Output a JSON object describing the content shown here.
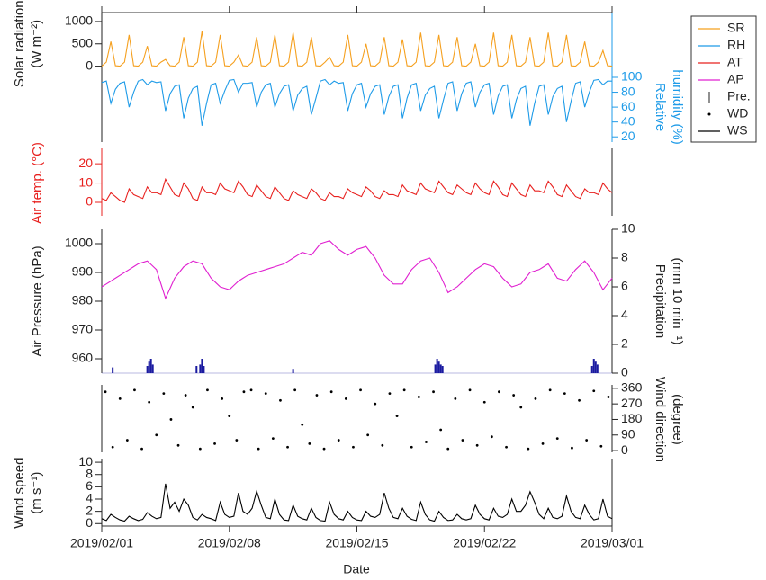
{
  "chart_data": {
    "type": "line",
    "xlabel": "Date",
    "xlim": [
      0,
      28
    ],
    "xticks": [
      {
        "value": 0,
        "label": "2019/02/01"
      },
      {
        "value": 7,
        "label": "2019/02/08"
      },
      {
        "value": 14,
        "label": "2019/02/15"
      },
      {
        "value": 21,
        "label": "2019/02/22"
      },
      {
        "value": 28,
        "label": "2019/03/01"
      }
    ],
    "x": [
      0,
      0.25,
      0.5,
      0.75,
      1,
      1.25,
      1.5,
      1.75,
      2,
      2.25,
      2.5,
      2.75,
      3,
      3.25,
      3.5,
      3.75,
      4,
      4.25,
      4.5,
      4.75,
      5,
      5.25,
      5.5,
      5.75,
      6,
      6.25,
      6.5,
      6.75,
      7,
      7.25,
      7.5,
      7.75,
      8,
      8.25,
      8.5,
      8.75,
      9,
      9.25,
      9.5,
      9.75,
      10,
      10.25,
      10.5,
      10.75,
      11,
      11.25,
      11.5,
      11.75,
      12,
      12.25,
      12.5,
      12.75,
      13,
      13.25,
      13.5,
      13.75,
      14,
      14.25,
      14.5,
      14.75,
      15,
      15.25,
      15.5,
      15.75,
      16,
      16.25,
      16.5,
      16.75,
      17,
      17.25,
      17.5,
      17.75,
      18,
      18.25,
      18.5,
      18.75,
      19,
      19.25,
      19.5,
      19.75,
      20,
      20.25,
      20.5,
      20.75,
      21,
      21.25,
      21.5,
      21.75,
      22,
      22.25,
      22.5,
      22.75,
      23,
      23.25,
      23.5,
      23.75,
      24,
      24.25,
      24.5,
      24.75,
      25,
      25.25,
      25.5,
      25.75,
      26,
      26.25,
      26.5,
      26.75,
      27,
      27.25,
      27.5,
      27.75,
      28
    ],
    "panels": [
      {
        "ylabel": [
          "Solar radiation",
          "(W m⁻²)"
        ],
        "ylim": [
          -1700,
          1200
        ],
        "yticks": [
          0,
          500,
          1000
        ],
        "y2label": [
          "Relative",
          "humidity (%)"
        ],
        "y2lim": [
          13,
          187
        ],
        "y2ticks": [
          20,
          40,
          60,
          80,
          100
        ],
        "series": [
          {
            "name": "SR",
            "type": "line",
            "color": "#f5a01f",
            "values": [
              0,
              90,
              550,
              10,
              0,
              90,
              700,
              10,
              0,
              90,
              450,
              10,
              0,
              90,
              150,
              10,
              0,
              90,
              650,
              10,
              0,
              90,
              780,
              10,
              0,
              90,
              700,
              10,
              0,
              90,
              250,
              10,
              0,
              90,
              650,
              10,
              0,
              90,
              700,
              10,
              0,
              90,
              750,
              10,
              0,
              90,
              650,
              10,
              0,
              90,
              200,
              10,
              0,
              90,
              700,
              10,
              0,
              90,
              500,
              10,
              0,
              90,
              650,
              10,
              0,
              90,
              600,
              10,
              0,
              90,
              750,
              10,
              0,
              90,
              700,
              10,
              0,
              90,
              650,
              10,
              0,
              90,
              500,
              10,
              0,
              90,
              750,
              10,
              0,
              90,
              700,
              10,
              0,
              90,
              650,
              10,
              0,
              90,
              750,
              10,
              0,
              90,
              700,
              10,
              0,
              90,
              550,
              10,
              0,
              90,
              350,
              10,
              0
            ]
          },
          {
            "name": "RH",
            "type": "line",
            "axis": "y2",
            "axis_colored": true,
            "color": "#1e9be8",
            "values": [
              93,
              95,
              65,
              84,
              92,
              94,
              60,
              80,
              95,
              97,
              90,
              95,
              93,
              94,
              55,
              78,
              88,
              90,
              45,
              72,
              85,
              88,
              35,
              65,
              90,
              92,
              65,
              82,
              96,
              97,
              80,
              92,
              92,
              93,
              60,
              80,
              90,
              92,
              60,
              78,
              88,
              90,
              55,
              76,
              85,
              88,
              50,
              72,
              95,
              97,
              90,
              95,
              92,
              93,
              55,
              78,
              90,
              92,
              60,
              78,
              88,
              90,
              50,
              74,
              88,
              90,
              45,
              72,
              90,
              92,
              55,
              76,
              85,
              88,
              45,
              70,
              92,
              94,
              55,
              78,
              92,
              94,
              60,
              80,
              90,
              92,
              50,
              75,
              88,
              90,
              45,
              70,
              85,
              88,
              35,
              65,
              88,
              90,
              50,
              74,
              85,
              88,
              40,
              68,
              92,
              94,
              60,
              80,
              96,
              97,
              90,
              95,
              95
            ]
          }
        ]
      },
      {
        "ylabel": [
          "Air temp. (°C)"
        ],
        "ylim": [
          -7,
          28
        ],
        "yticks": [
          0,
          10,
          20
        ],
        "series": [
          {
            "name": "AT",
            "type": "line",
            "axis_colored": true,
            "color": "#e8211f",
            "values": [
              2,
              1,
              5,
              3,
              1,
              0,
              7,
              4,
              3,
              2,
              8,
              5,
              5,
              4,
              12,
              8,
              4,
              3,
              10,
              7,
              2,
              1,
              8,
              5,
              5,
              4,
              10,
              7,
              6,
              5,
              11,
              8,
              4,
              3,
              9,
              6,
              3,
              2,
              8,
              5,
              2,
              1,
              6,
              4,
              3,
              2,
              7,
              5,
              2,
              1,
              5,
              3,
              3,
              2,
              7,
              5,
              4,
              3,
              8,
              6,
              3,
              2,
              6,
              4,
              4,
              3,
              9,
              6,
              5,
              4,
              10,
              7,
              6,
              5,
              11,
              8,
              5,
              4,
              9,
              7,
              5,
              4,
              10,
              7,
              5,
              4,
              11,
              8,
              4,
              3,
              10,
              7,
              4,
              3,
              9,
              6,
              6,
              5,
              11,
              8,
              4,
              3,
              9,
              6,
              3,
              2,
              7,
              5,
              5,
              4,
              10,
              7,
              5
            ]
          }
        ]
      },
      {
        "ylabel": [
          "Air Pressure (hPa)"
        ],
        "ylim": [
          955,
          1005
        ],
        "yticks": [
          960,
          970,
          980,
          990,
          1000
        ],
        "y2label": [
          "Precipitation",
          "(mm 10 min⁻¹)"
        ],
        "y2lim": [
          0,
          10
        ],
        "y2ticks": [
          0,
          2,
          4,
          6,
          8,
          10
        ],
        "series": [
          {
            "name": "AP",
            "type": "line",
            "color": "#e020d0",
            "values": [
              985,
              986,
              987,
              988,
              989,
              990,
              991,
              992,
              993,
              993.5,
              994,
              992.5,
              991,
              986,
              981,
              984.5,
              988,
              990,
              992,
              993,
              994,
              993.5,
              993,
              990.5,
              988,
              986.5,
              985,
              984.5,
              984,
              985.5,
              987,
              988,
              989,
              989.5,
              990,
              990.5,
              991,
              991.5,
              992,
              992.5,
              993,
              994,
              995,
              996,
              997,
              996.5,
              996,
              998,
              1000,
              1000.5,
              1001,
              999.5,
              998,
              997,
              996,
              997,
              998,
              998.5,
              999,
              997,
              995,
              992,
              989,
              987.5,
              986,
              986,
              986,
              988.5,
              991,
              992.5,
              994,
              994.5,
              995,
              992.5,
              990,
              986.5,
              983,
              984,
              985,
              986.5,
              988,
              989.5,
              991,
              992,
              993,
              992.5,
              992,
              990,
              988,
              986.5,
              985,
              985.5,
              986,
              988,
              990,
              990.5,
              991,
              992,
              993,
              990.5,
              988,
              987.5,
              987,
              989,
              991,
              992.5,
              994,
              992,
              990,
              987,
              984,
              986,
              988
            ]
          },
          {
            "name": "Pre.",
            "type": "bar",
            "axis": "y2",
            "color": "#1a1aa0",
            "x": [
              0.6,
              2.5,
              2.6,
              2.7,
              2.8,
              5.2,
              5.4,
              5.5,
              5.6,
              10.5,
              18.3,
              18.4,
              18.5,
              18.6,
              18.7,
              26.9,
              27.0,
              27.1,
              27.2
            ],
            "values": [
              0.4,
              0.5,
              0.8,
              1.0,
              0.6,
              0.5,
              0.6,
              1.0,
              0.5,
              0.3,
              0.6,
              1.0,
              0.8,
              0.6,
              0.5,
              0.5,
              1.0,
              0.8,
              0.6
            ]
          }
        ]
      },
      {
        "y2label": [
          "Wind direction",
          "(degree)"
        ],
        "y2lim": [
          -10,
          380
        ],
        "y2ticks": [
          0,
          90,
          180,
          270,
          360
        ],
        "series": [
          {
            "name": "WD",
            "type": "scatter",
            "axis": "y2",
            "color": "#000000",
            "x": [
              0.2,
              0.6,
              1.0,
              1.4,
              1.8,
              2.2,
              2.6,
              3.0,
              3.4,
              3.8,
              4.2,
              4.6,
              5.0,
              5.4,
              5.8,
              6.2,
              6.6,
              7.0,
              7.4,
              7.8,
              8.2,
              8.6,
              9.0,
              9.4,
              9.8,
              10.2,
              10.6,
              11.0,
              11.4,
              11.8,
              12.2,
              12.6,
              13.0,
              13.4,
              13.8,
              14.2,
              14.6,
              15.0,
              15.4,
              15.8,
              16.2,
              16.6,
              17.0,
              17.4,
              17.8,
              18.2,
              18.6,
              19.0,
              19.4,
              19.8,
              20.2,
              20.6,
              21.0,
              21.4,
              21.8,
              22.2,
              22.6,
              23.0,
              23.4,
              23.8,
              24.2,
              24.6,
              25.0,
              25.4,
              25.8,
              26.2,
              26.6,
              27.0,
              27.4,
              27.8
            ],
            "values": [
              340,
              20,
              300,
              60,
              350,
              10,
              280,
              90,
              330,
              180,
              30,
              320,
              250,
              10,
              350,
              40,
              300,
              200,
              60,
              340,
              350,
              10,
              330,
              70,
              290,
              20,
              350,
              150,
              40,
              320,
              10,
              340,
              60,
              300,
              20,
              350,
              90,
              270,
              30,
              330,
              200,
              350,
              20,
              310,
              50,
              340,
              120,
              10,
              300,
              60,
              350,
              30,
              280,
              80,
              340,
              20,
              320,
              250,
              10,
              300,
              40,
              350,
              70,
              330,
              15,
              290,
              60,
              345,
              25,
              310
            ]
          }
        ]
      },
      {
        "ylabel": [
          "Wind speed",
          "(m s⁻¹)"
        ],
        "ylim": [
          -0.4,
          10.6
        ],
        "yticks": [
          0,
          2,
          4,
          6,
          8,
          10
        ],
        "series": [
          {
            "name": "WS",
            "type": "line",
            "color": "#000000",
            "values": [
              0.8,
              0.5,
              1.5,
              1.0,
              0.6,
              0.4,
              1.2,
              0.8,
              0.5,
              0.7,
              1.8,
              1.2,
              0.8,
              1.0,
              6.5,
              2.5,
              3.5,
              2.0,
              4.0,
              3.0,
              1.0,
              0.6,
              1.5,
              1.0,
              0.8,
              0.5,
              3.5,
              1.5,
              1.0,
              1.2,
              5.0,
              2.0,
              1.5,
              2.5,
              5.3,
              3.0,
              1.0,
              0.8,
              4.0,
              1.5,
              0.6,
              0.5,
              3.0,
              1.2,
              0.8,
              0.6,
              2.5,
              1.0,
              0.5,
              0.4,
              3.5,
              1.5,
              0.8,
              0.6,
              2.0,
              1.0,
              0.6,
              0.5,
              2.0,
              1.2,
              1.0,
              1.5,
              5.0,
              2.5,
              1.0,
              0.8,
              2.5,
              1.2,
              0.7,
              0.5,
              3.5,
              1.5,
              0.6,
              0.4,
              2.0,
              1.0,
              0.5,
              0.6,
              1.5,
              0.8,
              0.6,
              0.8,
              3.0,
              1.5,
              0.8,
              0.6,
              2.5,
              1.2,
              1.0,
              1.5,
              4.0,
              2.0,
              2.0,
              3.0,
              5.2,
              3.5,
              1.5,
              0.8,
              2.5,
              1.0,
              0.8,
              1.2,
              4.5,
              2.0,
              1.0,
              0.8,
              3.0,
              1.5,
              0.6,
              0.8,
              4.0,
              1.2,
              0.8
            ]
          }
        ]
      }
    ]
  }
}
